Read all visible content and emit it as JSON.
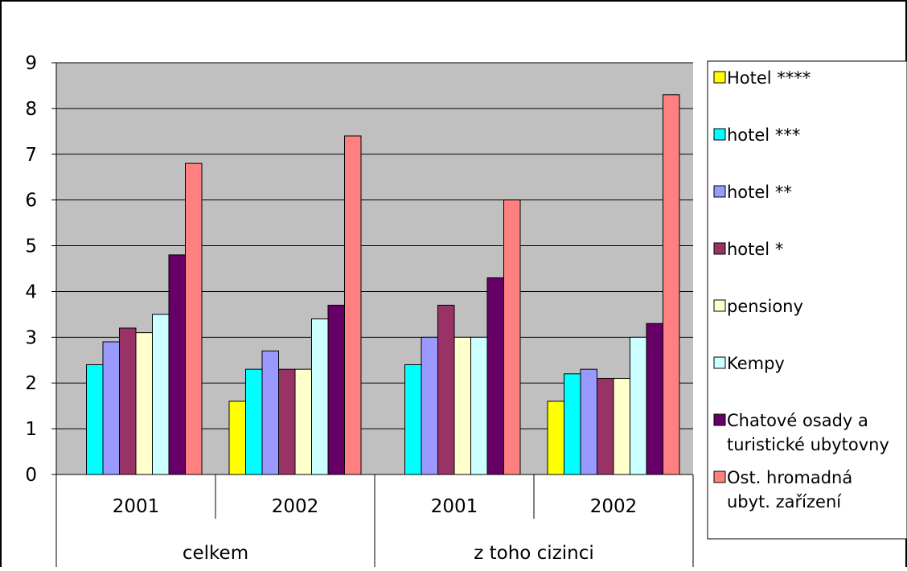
{
  "chart_data": {
    "type": "bar",
    "title": "",
    "xlabel": "",
    "ylabel": "",
    "ylim": [
      0,
      9
    ],
    "yticks": [
      "0",
      "1",
      "2",
      "3",
      "4",
      "5",
      "6",
      "7",
      "8",
      "9"
    ],
    "grid": true,
    "legend_position": "right",
    "groups": [
      {
        "label": "celkem",
        "categories": [
          "2001",
          "2002"
        ]
      },
      {
        "label": "z toho cizinci",
        "categories": [
          "2001",
          "2002"
        ]
      }
    ],
    "series": [
      {
        "name": "Hotel ****",
        "color": "#FFFF00",
        "values": [
          0,
          1.6,
          0,
          1.6
        ]
      },
      {
        "name": "hotel ***",
        "color": "#00FFFF",
        "values": [
          2.4,
          2.3,
          2.4,
          2.2
        ]
      },
      {
        "name": "hotel **",
        "color": "#9999FF",
        "values": [
          2.9,
          2.7,
          3.0,
          2.3
        ]
      },
      {
        "name": "hotel *",
        "color": "#993366",
        "values": [
          3.2,
          2.3,
          3.7,
          2.1
        ]
      },
      {
        "name": "pensiony",
        "color": "#FFFFCC",
        "values": [
          3.1,
          2.3,
          3.0,
          2.1
        ]
      },
      {
        "name": "Kempy",
        "color": "#CCFFFF",
        "values": [
          3.5,
          3.4,
          3.0,
          3.0
        ]
      },
      {
        "name_lines": [
          "Chatové osady a",
          "turistické ubytovny"
        ],
        "color": "#660066",
        "values": [
          4.8,
          3.7,
          4.3,
          3.3
        ]
      },
      {
        "name_lines": [
          "Ost. hromadná",
          "ubyt. zařízení"
        ],
        "color": "#FF8080",
        "values": [
          6.8,
          7.4,
          6.0,
          8.3
        ]
      }
    ],
    "plot_background": "#C0C0C0"
  }
}
